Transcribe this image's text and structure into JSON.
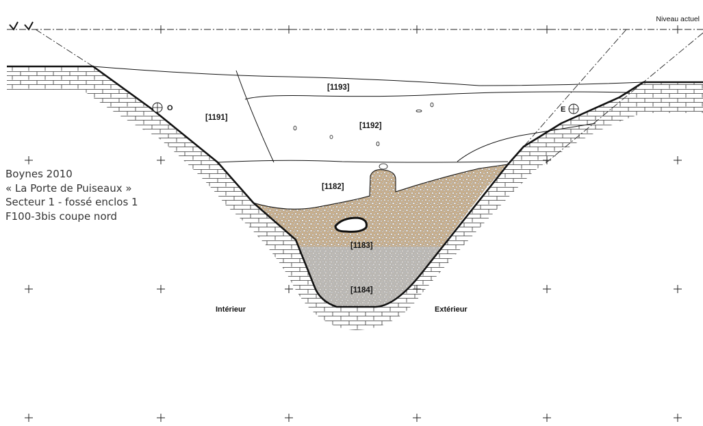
{
  "caption": {
    "line1": "Boynes 2010",
    "line2": "« La Porte de Puiseaux »",
    "line3": "Secteur 1 - fossé enclos 1",
    "line4": "F100-3bis coupe nord"
  },
  "top_right_label": "Niveau actuel",
  "layers": {
    "l1193": "[1193]",
    "l1191": "[1191]",
    "l1192": "[1192]",
    "l1182": "[1182]",
    "l1183": "[1183]",
    "l1184": "[1184]"
  },
  "markers": {
    "west": "O",
    "east": "E"
  },
  "sides": {
    "inside": "Intérieur",
    "outside": "Extérieur"
  },
  "colors": {
    "fill_1183": "#c9b08e",
    "fill_1184": "#b9b9b9",
    "background": "#ffffff",
    "stroke": "#111111"
  }
}
